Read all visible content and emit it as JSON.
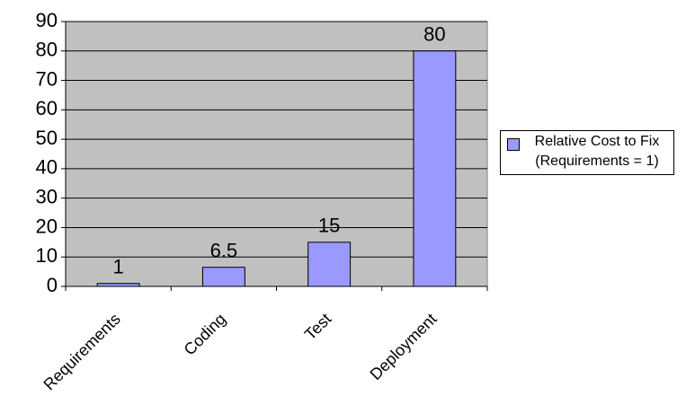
{
  "chart_data": {
    "type": "bar",
    "categories": [
      "Requirements",
      "Coding",
      "Test",
      "Deployment"
    ],
    "series": [
      {
        "name": "Relative Cost to Fix (Requirements = 1)",
        "color": "#9999ff",
        "values": [
          1,
          6.5,
          15,
          80
        ]
      }
    ],
    "ylim": [
      0,
      90
    ],
    "yticks": [
      0,
      10,
      20,
      30,
      40,
      50,
      60,
      70,
      80,
      90
    ],
    "grid": true,
    "legend": "right",
    "plot_background": "#c0c0c0"
  }
}
